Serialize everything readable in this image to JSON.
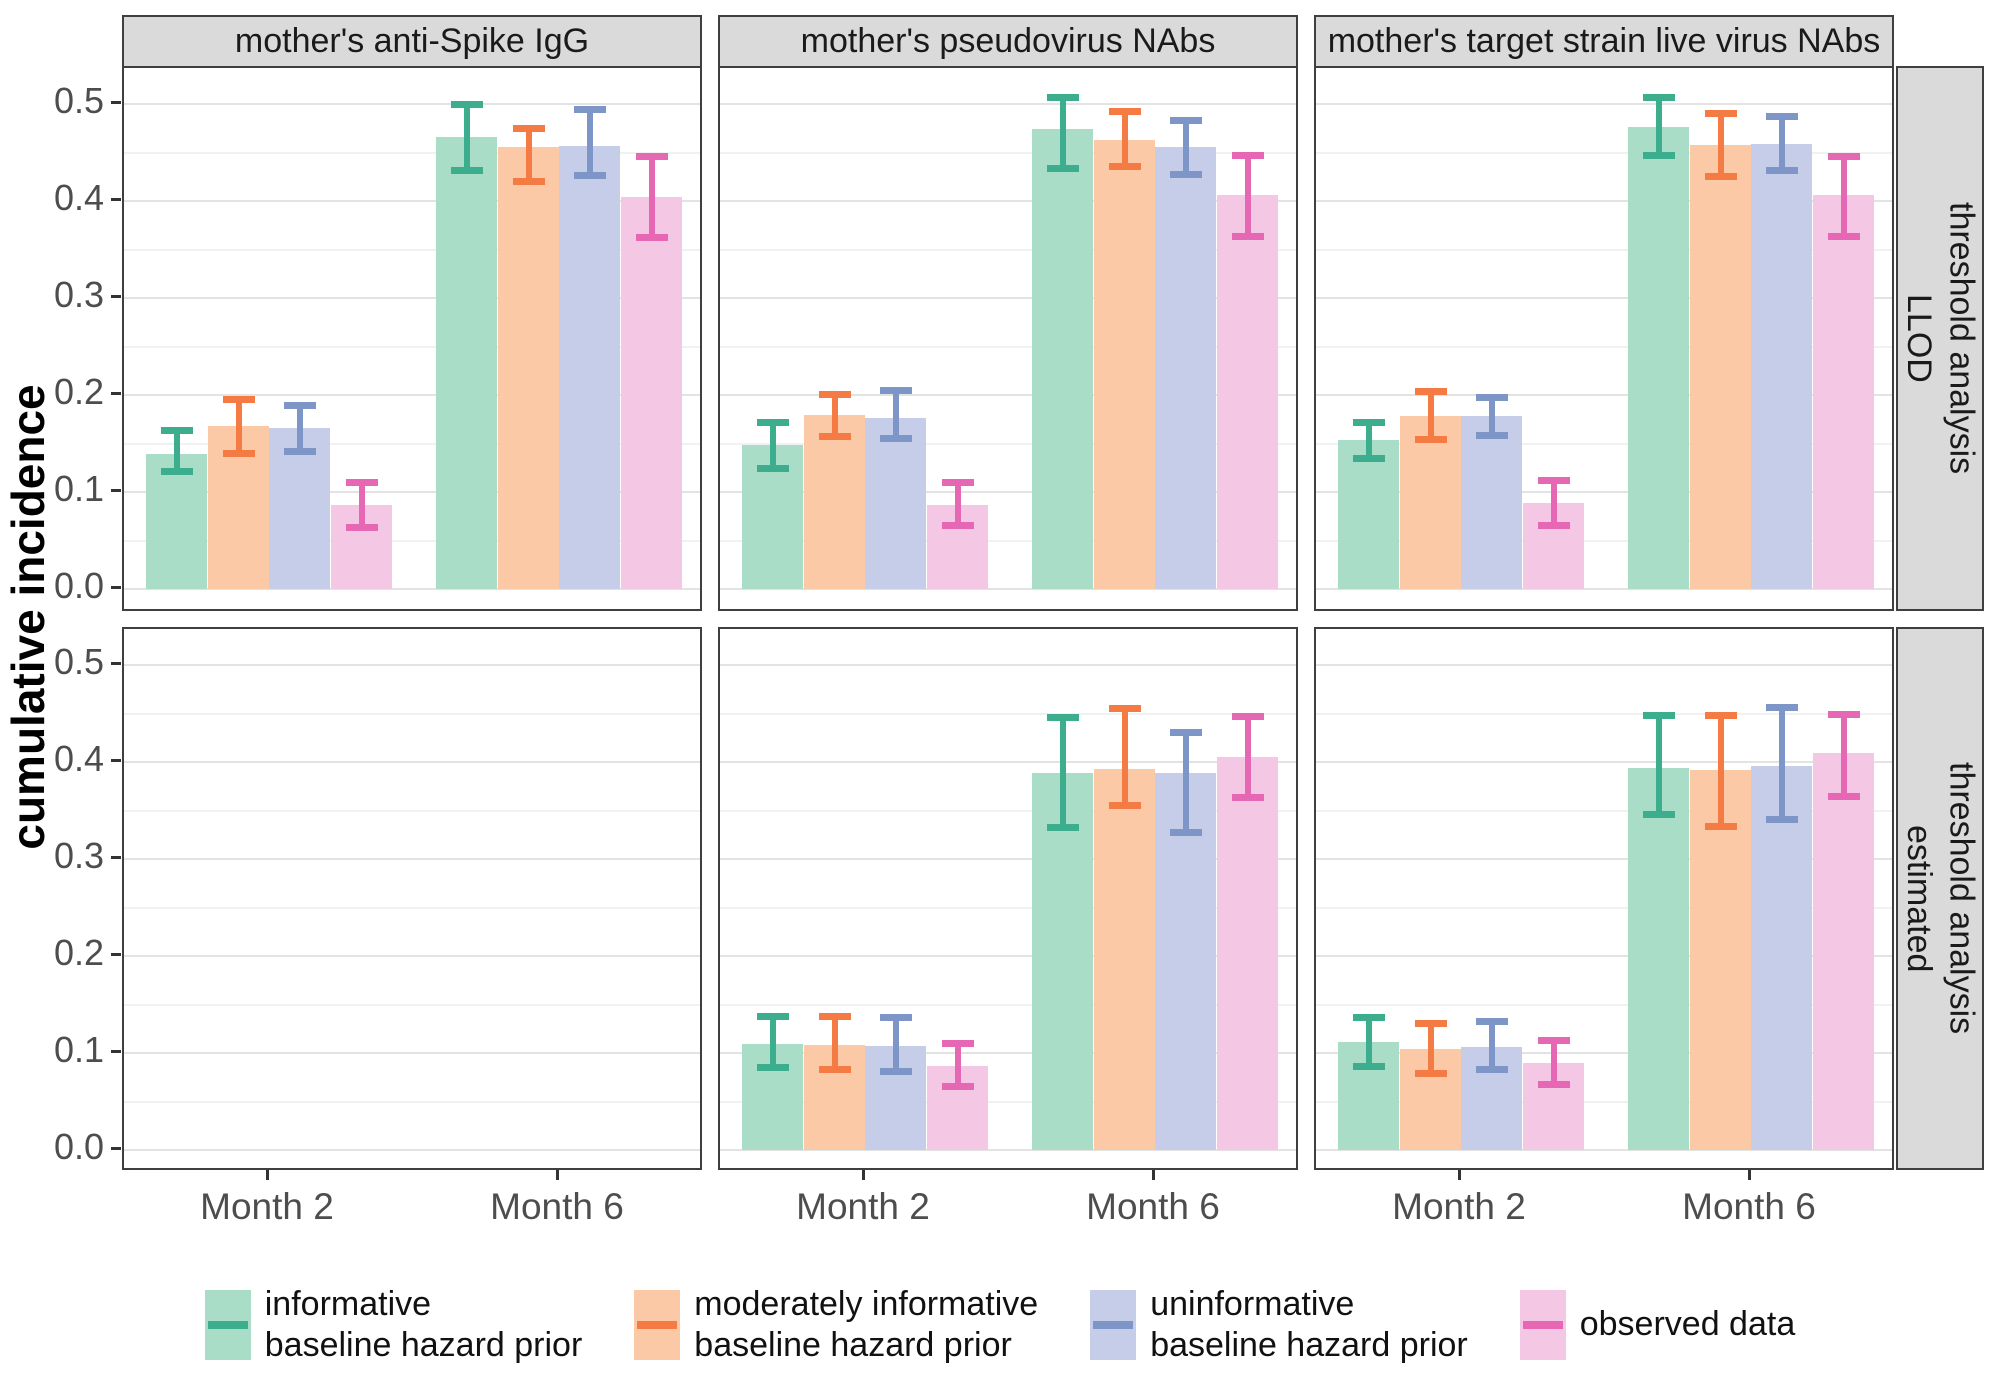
{
  "figure": {
    "y_axis_title": "cumulative incidence",
    "y_ticks": [
      "0.0",
      "0.1",
      "0.2",
      "0.3",
      "0.4",
      "0.5"
    ],
    "x_ticks": [
      "Month 2",
      "Month 6"
    ],
    "col_facets": [
      "mother's anti-Spike IgG",
      "mother's pseudovirus NAbs",
      "mother's target strain live virus NAbs"
    ],
    "row_facets": [
      "LLOD\nthreshold analysis",
      "estimated\nthreshold analysis"
    ]
  },
  "series": [
    {
      "label": "informative\nbaseline hazard prior",
      "fill": "#aaddc8",
      "color": "#3dae8d"
    },
    {
      "label": "moderately informative\nbaseline hazard prior",
      "fill": "#fcc9a6",
      "color": "#f57b45"
    },
    {
      "label": "uninformative\nbaseline hazard prior",
      "fill": "#c5cde8",
      "color": "#7e95c8"
    },
    {
      "label": "observed data",
      "fill": "#f4c7e4",
      "color": "#e667b3"
    }
  ],
  "chart_data": {
    "type": "bar",
    "title": "",
    "ylabel": "cumulative incidence",
    "xlabel": "",
    "ylim": [
      0,
      0.5
    ],
    "y_major_ticks": [
      0,
      0.1,
      0.2,
      0.3,
      0.4,
      0.5
    ],
    "y_minor_ticks": [
      0.05,
      0.15,
      0.25,
      0.35,
      0.45
    ],
    "grid": "on",
    "legend_position": "bottom",
    "categories": [
      "Month 2",
      "Month 6"
    ],
    "series_names": [
      "informative baseline hazard prior",
      "moderately informative baseline hazard prior",
      "uninformative baseline hazard prior",
      "observed data"
    ],
    "facet_columns": [
      "mother's anti-Spike IgG",
      "mother's pseudovirus NAbs",
      "mother's target strain live virus NAbs"
    ],
    "facet_rows": [
      "LLOD threshold analysis",
      "estimated threshold analysis"
    ],
    "error_bars": "95% interval, values given as ci_low / ci_high per series",
    "panels": [
      {
        "row": 0,
        "col": 0,
        "groups": [
          {
            "category": "Month 2",
            "values": [
              0.139,
              0.168,
              0.166,
              0.087
            ],
            "ci_low": [
              0.118,
              0.136,
              0.138,
              0.06
            ],
            "ci_high": [
              0.167,
              0.199,
              0.193,
              0.113
            ]
          },
          {
            "category": "Month 6",
            "values": [
              0.466,
              0.456,
              0.457,
              0.404
            ],
            "ci_low": [
              0.428,
              0.416,
              0.423,
              0.359
            ],
            "ci_high": [
              0.503,
              0.478,
              0.498,
              0.449
            ]
          }
        ]
      },
      {
        "row": 0,
        "col": 1,
        "groups": [
          {
            "category": "Month 2",
            "values": [
              0.148,
              0.179,
              0.176,
              0.087
            ],
            "ci_low": [
              0.121,
              0.154,
              0.152,
              0.062
            ],
            "ci_high": [
              0.175,
              0.204,
              0.208,
              0.113
            ]
          },
          {
            "category": "Month 6",
            "values": [
              0.474,
              0.463,
              0.456,
              0.406
            ],
            "ci_low": [
              0.43,
              0.432,
              0.424,
              0.36
            ],
            "ci_high": [
              0.51,
              0.496,
              0.487,
              0.451
            ]
          }
        ]
      },
      {
        "row": 0,
        "col": 2,
        "groups": [
          {
            "category": "Month 2",
            "values": [
              0.154,
              0.178,
              0.178,
              0.089
            ],
            "ci_low": [
              0.131,
              0.151,
              0.155,
              0.062
            ],
            "ci_high": [
              0.175,
              0.207,
              0.201,
              0.115
            ]
          },
          {
            "category": "Month 6",
            "values": [
              0.476,
              0.458,
              0.459,
              0.406
            ],
            "ci_low": [
              0.443,
              0.422,
              0.428,
              0.36
            ],
            "ci_high": [
              0.51,
              0.494,
              0.491,
              0.45
            ]
          }
        ]
      },
      {
        "row": 1,
        "col": 0,
        "groups": []
      },
      {
        "row": 1,
        "col": 1,
        "groups": [
          {
            "category": "Month 2",
            "values": [
              0.109,
              0.108,
              0.107,
              0.087
            ],
            "ci_low": [
              0.081,
              0.079,
              0.077,
              0.062
            ],
            "ci_high": [
              0.141,
              0.141,
              0.14,
              0.113
            ]
          },
          {
            "category": "Month 6",
            "values": [
              0.389,
              0.393,
              0.389,
              0.405
            ],
            "ci_low": [
              0.329,
              0.352,
              0.324,
              0.36
            ],
            "ci_high": [
              0.449,
              0.459,
              0.434,
              0.451
            ]
          }
        ]
      },
      {
        "row": 1,
        "col": 2,
        "groups": [
          {
            "category": "Month 2",
            "values": [
              0.111,
              0.104,
              0.106,
              0.09
            ],
            "ci_low": [
              0.082,
              0.075,
              0.079,
              0.064
            ],
            "ci_high": [
              0.14,
              0.134,
              0.136,
              0.117
            ]
          },
          {
            "category": "Month 6",
            "values": [
              0.394,
              0.392,
              0.396,
              0.409
            ],
            "ci_low": [
              0.342,
              0.33,
              0.337,
              0.361
            ],
            "ci_high": [
              0.452,
              0.452,
              0.46,
              0.453
            ]
          }
        ]
      }
    ]
  }
}
